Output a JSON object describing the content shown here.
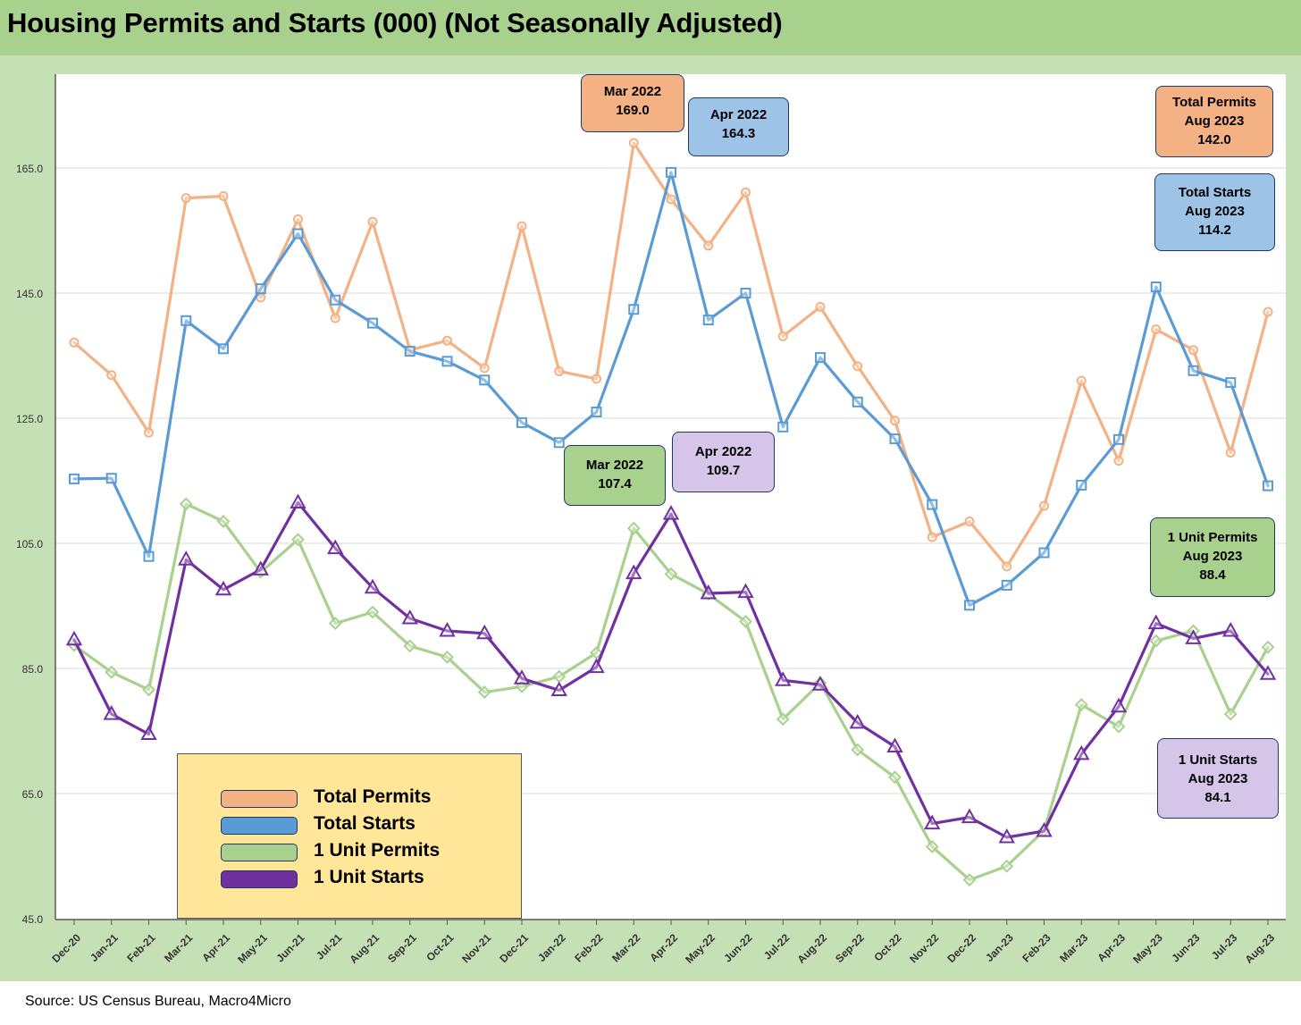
{
  "title": "Housing Permits and Starts (000) (Not Seasonally Adjusted)",
  "source": "Source: US Census Bureau, Macro4Micro",
  "colors": {
    "total_permits": "#f4b183",
    "total_starts": "#5b9bd5",
    "unit1_permits": "#a9d18e",
    "unit1_starts": "#7030a0",
    "callout_orange": "#f4b183",
    "callout_blue": "#9dc3e6",
    "callout_green": "#a9d18e",
    "callout_purple": "#d5c5e8",
    "legend_bg": "#ffe699"
  },
  "legend": [
    {
      "label": "Total Permits",
      "color": "#f4b183"
    },
    {
      "label": "Total Starts",
      "color": "#5b9bd5"
    },
    {
      "label": "1 Unit Permits",
      "color": "#a9d18e"
    },
    {
      "label": "1 Unit Starts",
      "color": "#7030a0"
    }
  ],
  "callouts": {
    "mar22_permits": {
      "line1": "Mar 2022",
      "line2": "169.0"
    },
    "apr22_starts": {
      "line1": "Apr 2022",
      "line2": "164.3"
    },
    "total_permits_aug23": {
      "line1": "Total Permits",
      "line2": "Aug 2023",
      "line3": "142.0"
    },
    "total_starts_aug23": {
      "line1": "Total Starts",
      "line2": "Aug 2023",
      "line3": "114.2"
    },
    "mar22_unit1_permits": {
      "line1": "Mar 2022",
      "line2": "107.4"
    },
    "apr22_unit1_starts": {
      "line1": "Apr 2022",
      "line2": "109.7"
    },
    "unit1_permits_aug23": {
      "line1": "1 Unit Permits",
      "line2": "Aug 2023",
      "line3": "88.4"
    },
    "unit1_starts_aug23": {
      "line1": "1 Unit Starts",
      "line2": "Aug 2023",
      "line3": "84.1"
    }
  },
  "chart_data": {
    "type": "line",
    "title": "Housing Permits and Starts (000) (Not Seasonally Adjusted)",
    "xlabel": "",
    "ylabel": "",
    "ylim": [
      45,
      180
    ],
    "yticks": [
      "45.0",
      "65.0",
      "85.0",
      "105.0",
      "125.0",
      "145.0",
      "165.0"
    ],
    "grid": true,
    "categories": [
      "Dec-20",
      "Jan-21",
      "Feb-21",
      "Mar-21",
      "Apr-21",
      "May-21",
      "Jun-21",
      "Jul-21",
      "Aug-21",
      "Sep-21",
      "Oct-21",
      "Nov-21",
      "Dec-21",
      "Jan-22",
      "Feb-22",
      "Mar-22",
      "Apr-22",
      "May-22",
      "Jun-22",
      "Jul-22",
      "Aug-22",
      "Sep-22",
      "Oct-22",
      "Nov-22",
      "Dec-22",
      "Jan-23",
      "Feb-23",
      "Mar-23",
      "Apr-23",
      "May-23",
      "Jun-23",
      "Jul-23",
      "Aug-23"
    ],
    "series": [
      {
        "name": "Total Permits",
        "color": "#f4b183",
        "marker": "circle",
        "values": [
          137.1,
          131.9,
          122.7,
          160.2,
          160.5,
          144.3,
          156.8,
          141.0,
          156.4,
          135.9,
          137.4,
          133.0,
          155.7,
          132.5,
          131.3,
          169.0,
          160.0,
          152.6,
          161.1,
          138.1,
          142.8,
          133.3,
          124.6,
          106.0,
          108.5,
          101.3,
          111.0,
          131.0,
          118.2,
          139.2,
          135.9,
          119.5,
          142.0
        ]
      },
      {
        "name": "Total Starts",
        "color": "#5b9bd5",
        "marker": "square",
        "values": [
          115.3,
          115.4,
          102.9,
          140.6,
          136.1,
          145.7,
          154.5,
          143.9,
          140.2,
          135.7,
          134.1,
          131.1,
          124.3,
          121.1,
          126.0,
          142.4,
          164.3,
          140.7,
          145.0,
          123.6,
          134.7,
          127.6,
          121.7,
          111.2,
          95.1,
          98.3,
          103.5,
          114.3,
          121.6,
          146.0,
          132.6,
          130.7,
          114.2
        ]
      },
      {
        "name": "1 Unit Permits",
        "color": "#a9d18e",
        "marker": "diamond",
        "values": [
          88.7,
          84.4,
          81.6,
          111.3,
          108.5,
          100.4,
          105.6,
          92.2,
          94.0,
          88.6,
          86.8,
          81.2,
          82.1,
          83.7,
          87.5,
          107.4,
          100.1,
          96.9,
          92.5,
          76.9,
          82.7,
          72.0,
          67.6,
          56.5,
          51.2,
          53.4,
          59.1,
          79.2,
          75.7,
          89.4,
          91.0,
          77.7,
          88.4
        ]
      },
      {
        "name": "1 Unit Starts",
        "color": "#7030a0",
        "marker": "triangle",
        "values": [
          89.6,
          77.7,
          74.5,
          102.4,
          97.6,
          100.8,
          111.5,
          104.2,
          97.9,
          93.0,
          91.0,
          90.6,
          83.4,
          81.5,
          85.2,
          100.2,
          109.7,
          97.0,
          97.2,
          83.1,
          82.4,
          76.3,
          72.5,
          60.2,
          61.2,
          58.0,
          59.0,
          71.3,
          78.9,
          92.2,
          89.8,
          91.0,
          84.1
        ]
      }
    ]
  }
}
